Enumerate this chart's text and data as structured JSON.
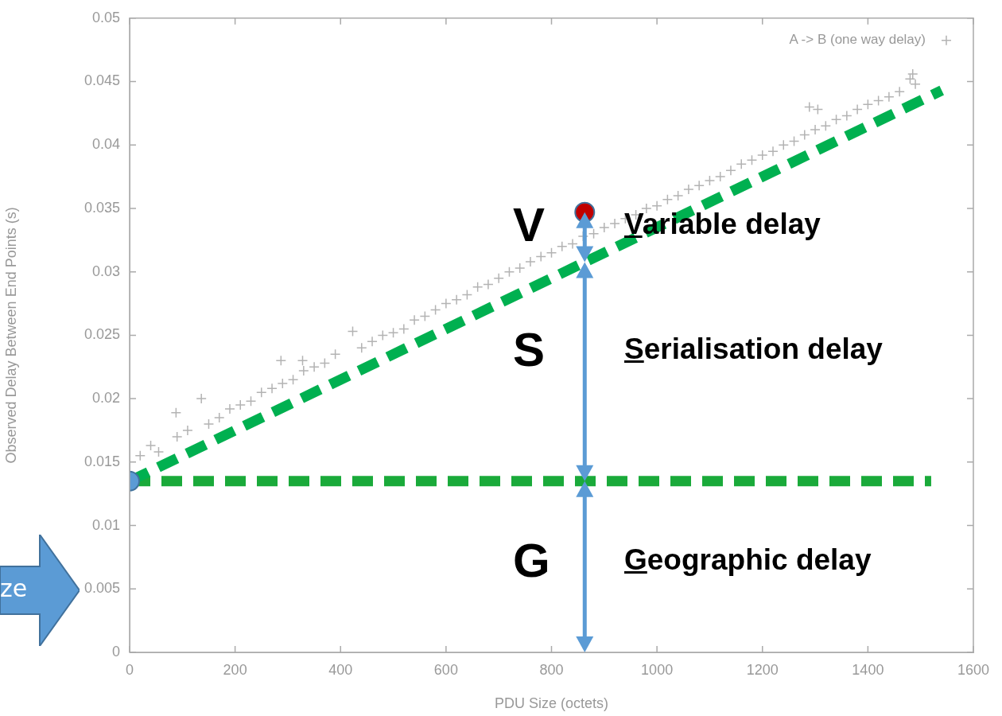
{
  "chart_data": {
    "type": "scatter",
    "xlabel": "PDU Size (octets)",
    "ylabel": "Observed Delay Between End Points (s)",
    "xlim": [
      0,
      1600
    ],
    "xticks": [
      0,
      200,
      400,
      600,
      800,
      1000,
      1200,
      1400,
      1600
    ],
    "ylim": [
      0,
      0.05
    ],
    "yticks": [
      0,
      0.005,
      0.01,
      0.015,
      0.02,
      0.025,
      0.03,
      0.035,
      0.04,
      0.045,
      0.05
    ],
    "grid": false,
    "legend": "top right",
    "series": [
      {
        "name": "A -> B (one way delay)",
        "color": "#b3b3b3",
        "marker": "cross",
        "x": [
          20,
          40,
          55,
          88,
          90,
          110,
          136,
          150,
          170,
          190,
          210,
          230,
          250,
          270,
          287,
          290,
          310,
          328,
          330,
          350,
          370,
          390,
          423,
          440,
          460,
          480,
          500,
          520,
          540,
          560,
          580,
          600,
          620,
          640,
          660,
          680,
          700,
          720,
          740,
          760,
          780,
          800,
          820,
          840,
          860,
          880,
          900,
          920,
          940,
          960,
          980,
          1000,
          1020,
          1040,
          1060,
          1080,
          1100,
          1120,
          1140,
          1160,
          1180,
          1200,
          1220,
          1240,
          1260,
          1280,
          1289,
          1300,
          1305,
          1320,
          1340,
          1360,
          1380,
          1400,
          1420,
          1440,
          1460,
          1480,
          1485,
          1490
        ],
        "values": [
          0.0155,
          0.0163,
          0.0158,
          0.0189,
          0.017,
          0.0175,
          0.02,
          0.018,
          0.0185,
          0.0192,
          0.0195,
          0.0198,
          0.0205,
          0.0208,
          0.023,
          0.0212,
          0.0215,
          0.023,
          0.0222,
          0.0225,
          0.0228,
          0.0235,
          0.0253,
          0.024,
          0.0245,
          0.025,
          0.0252,
          0.0255,
          0.0262,
          0.0265,
          0.027,
          0.0275,
          0.0278,
          0.0282,
          0.0288,
          0.029,
          0.0295,
          0.03,
          0.0303,
          0.0308,
          0.0312,
          0.0315,
          0.032,
          0.0322,
          0.0328,
          0.033,
          0.0335,
          0.0338,
          0.0342,
          0.0345,
          0.035,
          0.0352,
          0.0357,
          0.036,
          0.0365,
          0.0368,
          0.0372,
          0.0375,
          0.038,
          0.0385,
          0.0388,
          0.0392,
          0.0395,
          0.04,
          0.0403,
          0.0408,
          0.043,
          0.0412,
          0.0428,
          0.0415,
          0.042,
          0.0423,
          0.0428,
          0.0432,
          0.0435,
          0.0438,
          0.0442,
          0.0452,
          0.0456,
          0.0448
        ]
      },
      {
        "type": "line",
        "color": "#00b050",
        "line_style": "dashed",
        "marker": "none",
        "x": [
          0,
          1540
        ],
        "values": [
          0.0135,
          0.0443
        ]
      },
      {
        "type": "line",
        "color": "#1aaa3a",
        "line_style": "dashed",
        "marker": "none",
        "x": [
          0,
          1520
        ],
        "values": [
          0.0135,
          0.0135
        ]
      },
      {
        "color": "#5b9bd5",
        "marker": "circle",
        "x": [
          0
        ],
        "values": [
          0.0135
        ]
      },
      {
        "color": "#c00000",
        "marker": "circle",
        "x": [
          863
        ],
        "values": [
          0.0347
        ]
      }
    ],
    "annotations": [
      "V",
      "Variable delay",
      "S",
      "Serialisation delay",
      "G",
      "Geographic delay",
      "ze"
    ]
  }
}
